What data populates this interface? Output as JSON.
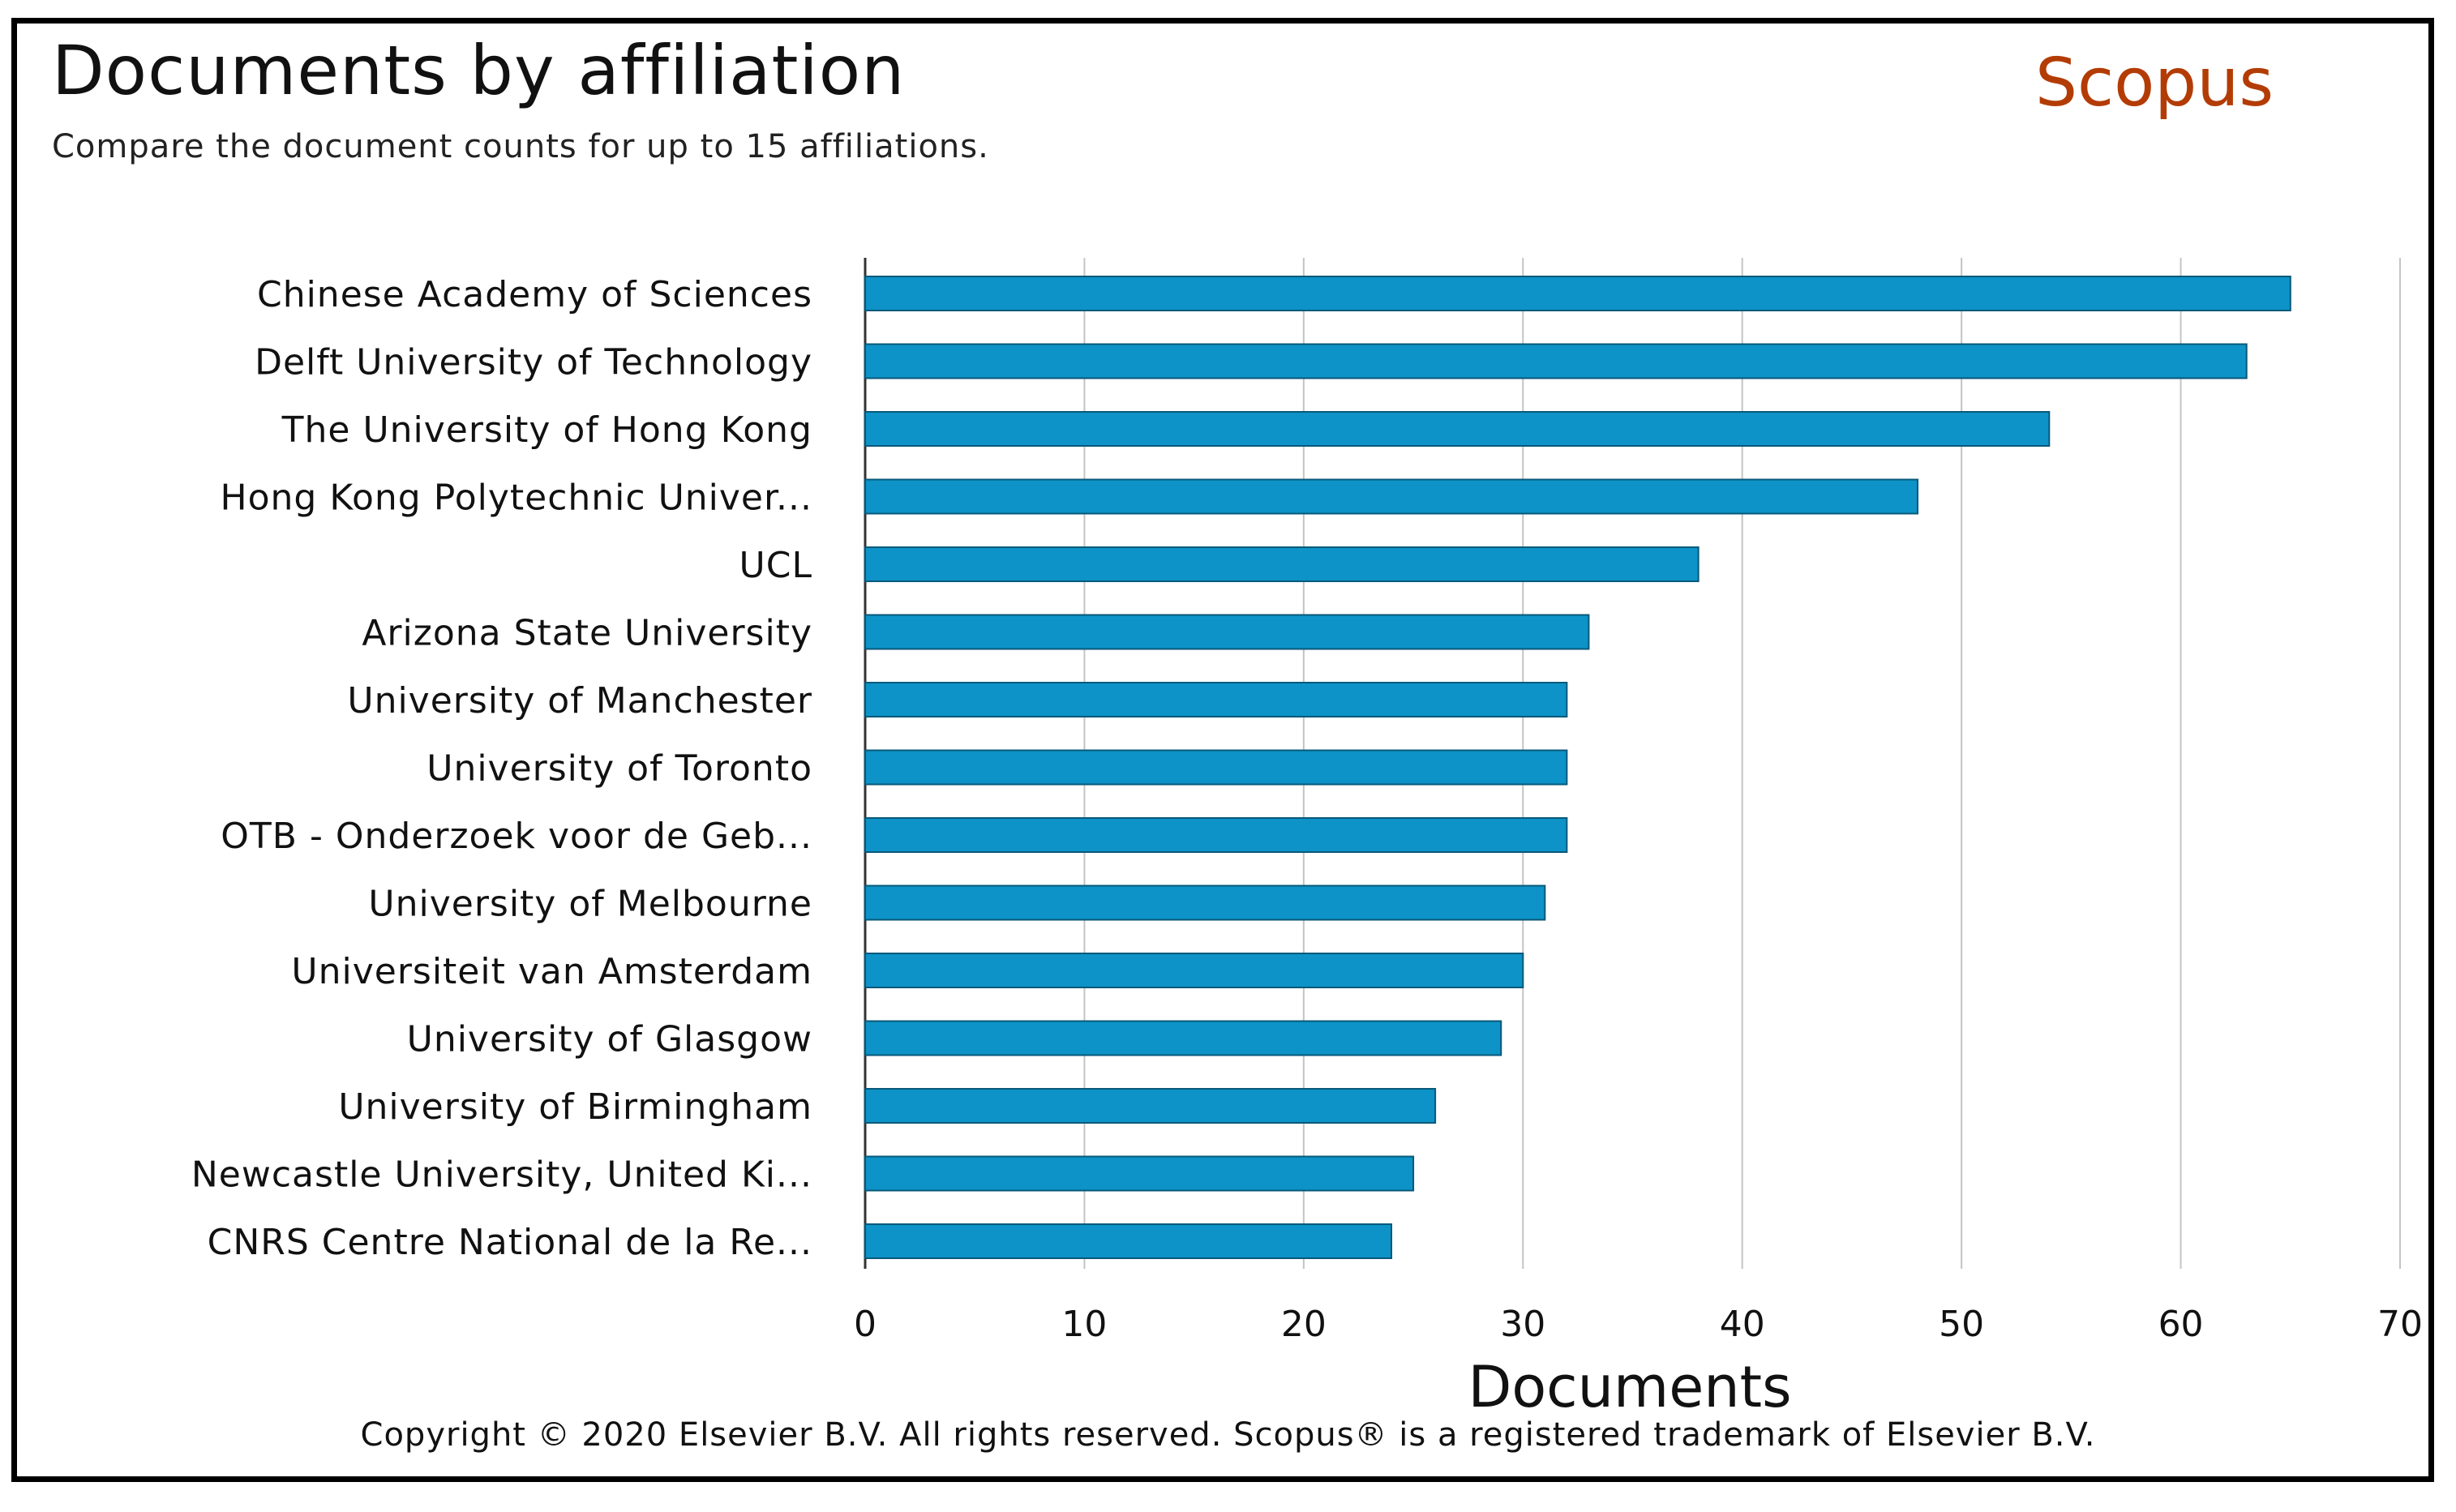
{
  "header": {
    "title": "Documents by affiliation",
    "subtitle": "Compare the document counts for up to 15 affiliations.",
    "brand": "Scopus"
  },
  "footer": {
    "copyright": "Copyright © 2020 Elsevier B.V. All rights reserved. Scopus® is a registered trademark of Elsevier B.V."
  },
  "colors": {
    "bar": "#0d93c7",
    "bar_edge": "#08597a",
    "brand": "#b33c05",
    "grid": "#c4c4c4"
  },
  "chart_data": {
    "type": "bar",
    "orientation": "horizontal",
    "title": "Documents by affiliation",
    "xlabel": "Documents",
    "ylabel": "",
    "xlim": [
      0,
      70
    ],
    "xticks": [
      0,
      10,
      20,
      30,
      40,
      50,
      60,
      70
    ],
    "grid": true,
    "categories": [
      "Chinese Academy of Sciences",
      "Delft University of Technology",
      "The University of Hong Kong",
      "Hong Kong Polytechnic Univer...",
      "UCL",
      "Arizona State University",
      "University of Manchester",
      "University of Toronto",
      "OTB - Onderzoek voor de Geb...",
      "University of Melbourne",
      "Universiteit van Amsterdam",
      "University of Glasgow",
      "University of Birmingham",
      "Newcastle University, United Ki...",
      "CNRS Centre National de la Re..."
    ],
    "values": [
      65,
      63,
      54,
      48,
      38,
      33,
      32,
      32,
      32,
      31,
      30,
      29,
      26,
      25,
      24
    ]
  }
}
